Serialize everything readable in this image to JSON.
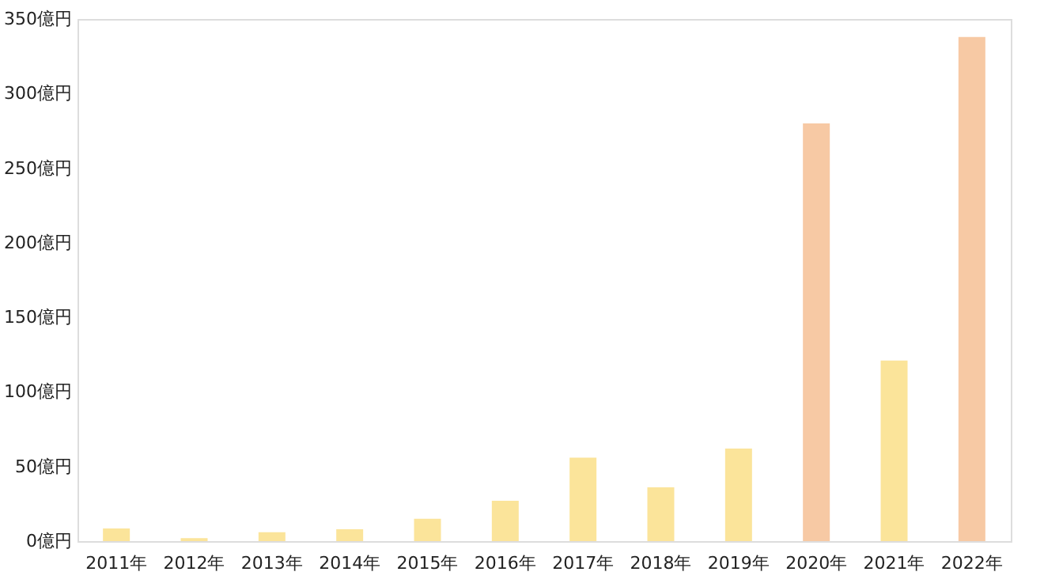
{
  "chart_data": {
    "type": "bar",
    "categories": [
      "2011年",
      "2012年",
      "2013年",
      "2014年",
      "2015年",
      "2016年",
      "2017年",
      "2018年",
      "2019年",
      "2020年",
      "2021年",
      "2022年"
    ],
    "values": [
      8.5,
      2,
      6,
      8,
      15,
      27,
      56,
      36,
      62,
      280,
      121,
      338
    ],
    "colors": [
      "#fbe49a",
      "#fbe49a",
      "#fbe49a",
      "#fbe49a",
      "#fbe49a",
      "#fbe49a",
      "#fbe49a",
      "#fbe49a",
      "#fbe49a",
      "#f7c9a4",
      "#fbe49a",
      "#f7c9a4"
    ],
    "ylim": [
      0,
      350
    ],
    "yticks": [
      {
        "value": 0,
        "label": "0億円"
      },
      {
        "value": 50,
        "label": "50億円"
      },
      {
        "value": 100,
        "label": "100億円"
      },
      {
        "value": 150,
        "label": "150億円"
      },
      {
        "value": 200,
        "label": "200億円"
      },
      {
        "value": 250,
        "label": "250億円"
      },
      {
        "value": 300,
        "label": "300億円"
      },
      {
        "value": 350,
        "label": "350億円"
      }
    ],
    "grid": false
  }
}
